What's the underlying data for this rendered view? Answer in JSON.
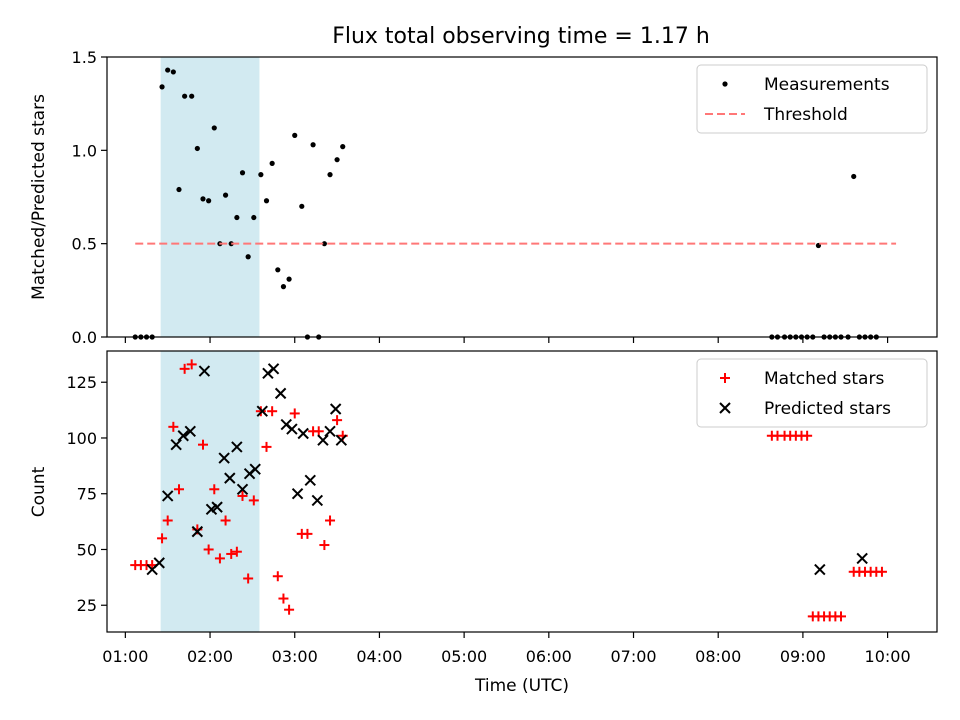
{
  "figure": {
    "title": "Flux total observing time = 1.17 h"
  },
  "chart_data": [
    {
      "type": "scatter",
      "ylabel": "Matched/Predicted stars",
      "ylim": [
        0,
        1.5
      ],
      "yticks": [
        "0.0",
        "0.5",
        "1.0",
        "1.5"
      ],
      "xlim": [
        "00:47",
        "10:35"
      ],
      "shaded_interval": [
        "01:25",
        "02:35"
      ],
      "shade_color": "#add8e6",
      "legend": {
        "position": "top-right"
      },
      "series": [
        {
          "name": "Measurements",
          "kind": "points",
          "color": "#000000",
          "points": [
            [
              "01:07",
              0
            ],
            [
              "01:11",
              0
            ],
            [
              "01:15",
              0
            ],
            [
              "01:19",
              0
            ],
            [
              "01:26",
              1.34
            ],
            [
              "01:30",
              1.43
            ],
            [
              "01:34",
              1.42
            ],
            [
              "01:38",
              0.79
            ],
            [
              "01:42",
              1.29
            ],
            [
              "01:47",
              1.29
            ],
            [
              "01:51",
              1.01
            ],
            [
              "01:55",
              0.74
            ],
            [
              "01:59",
              0.73
            ],
            [
              "02:03",
              1.12
            ],
            [
              "02:07",
              0.5
            ],
            [
              "02:11",
              0.76
            ],
            [
              "02:15",
              0.5
            ],
            [
              "02:19",
              0.64
            ],
            [
              "02:23",
              0.88
            ],
            [
              "02:27",
              0.43
            ],
            [
              "02:31",
              0.64
            ],
            [
              "02:36",
              0.87
            ],
            [
              "02:40",
              0.73
            ],
            [
              "02:44",
              0.93
            ],
            [
              "02:48",
              0.36
            ],
            [
              "02:52",
              0.27
            ],
            [
              "02:56",
              0.31
            ],
            [
              "03:00",
              1.08
            ],
            [
              "03:05",
              0.7
            ],
            [
              "03:09",
              0
            ],
            [
              "03:13",
              1.03
            ],
            [
              "03:17",
              0
            ],
            [
              "03:21",
              0.5
            ],
            [
              "03:25",
              0.87
            ],
            [
              "03:30",
              0.95
            ],
            [
              "03:34",
              1.02
            ],
            [
              "08:38",
              0
            ],
            [
              "08:42",
              0
            ],
            [
              "08:47",
              0
            ],
            [
              "08:51",
              0
            ],
            [
              "08:55",
              0
            ],
            [
              "08:59",
              0
            ],
            [
              "09:03",
              0
            ],
            [
              "09:07",
              0
            ],
            [
              "09:11",
              0.49
            ],
            [
              "09:15",
              0
            ],
            [
              "09:19",
              0
            ],
            [
              "09:23",
              0
            ],
            [
              "09:27",
              0
            ],
            [
              "09:32",
              0
            ],
            [
              "09:36",
              0.86
            ],
            [
              "09:40",
              0
            ],
            [
              "09:44",
              0
            ],
            [
              "09:48",
              0
            ],
            [
              "09:52",
              0
            ]
          ]
        },
        {
          "name": "Threshold",
          "kind": "dashed-line",
          "color": "#ff7777",
          "points": [
            [
              "01:07",
              0.5
            ],
            [
              "10:06",
              0.5
            ]
          ]
        }
      ]
    },
    {
      "type": "scatter",
      "xlabel": "Time (UTC)",
      "ylabel": "Count",
      "ylim": [
        13,
        139
      ],
      "yticks": [
        "25",
        "50",
        "75",
        "100",
        "125"
      ],
      "xlim": [
        "00:47",
        "10:35"
      ],
      "xticks": [
        "01:00",
        "02:00",
        "03:00",
        "04:00",
        "05:00",
        "06:00",
        "07:00",
        "08:00",
        "09:00",
        "10:00"
      ],
      "shaded_interval": [
        "01:25",
        "02:35"
      ],
      "shade_color": "#add8e6",
      "legend": {
        "position": "top-right"
      },
      "series": [
        {
          "name": "Matched stars",
          "marker": "plus",
          "color": "#ff0000",
          "points": [
            [
              "01:07",
              43
            ],
            [
              "01:11",
              43
            ],
            [
              "01:15",
              43
            ],
            [
              "01:19",
              43
            ],
            [
              "01:26",
              55
            ],
            [
              "01:30",
              63
            ],
            [
              "01:34",
              105
            ],
            [
              "01:38",
              77
            ],
            [
              "01:42",
              131
            ],
            [
              "01:47",
              133
            ],
            [
              "01:51",
              59
            ],
            [
              "01:55",
              97
            ],
            [
              "01:59",
              50
            ],
            [
              "02:03",
              77
            ],
            [
              "02:07",
              46
            ],
            [
              "02:11",
              63
            ],
            [
              "02:15",
              48
            ],
            [
              "02:19",
              49
            ],
            [
              "02:23",
              74
            ],
            [
              "02:27",
              37
            ],
            [
              "02:31",
              72
            ],
            [
              "02:36",
              112
            ],
            [
              "02:40",
              96
            ],
            [
              "02:44",
              112
            ],
            [
              "02:48",
              38
            ],
            [
              "02:52",
              28
            ],
            [
              "02:56",
              23
            ],
            [
              "03:00",
              111
            ],
            [
              "03:05",
              57
            ],
            [
              "03:09",
              57
            ],
            [
              "03:13",
              103
            ],
            [
              "03:17",
              103
            ],
            [
              "03:21",
              52
            ],
            [
              "03:25",
              63
            ],
            [
              "03:30",
              108
            ],
            [
              "03:34",
              101
            ],
            [
              "08:38",
              101
            ],
            [
              "08:42",
              101
            ],
            [
              "08:47",
              101
            ],
            [
              "08:51",
              101
            ],
            [
              "08:55",
              101
            ],
            [
              "08:59",
              101
            ],
            [
              "09:03",
              101
            ],
            [
              "09:07",
              20
            ],
            [
              "09:11",
              20
            ],
            [
              "09:15",
              20
            ],
            [
              "09:19",
              20
            ],
            [
              "09:23",
              20
            ],
            [
              "09:27",
              20
            ],
            [
              "09:36",
              40
            ],
            [
              "09:40",
              40
            ],
            [
              "09:44",
              40
            ],
            [
              "09:48",
              40
            ],
            [
              "09:52",
              40
            ],
            [
              "09:56",
              40
            ]
          ]
        },
        {
          "name": "Predicted stars",
          "marker": "x",
          "color": "#000000",
          "points": [
            [
              "01:19",
              41
            ],
            [
              "01:24",
              44
            ],
            [
              "01:30",
              74
            ],
            [
              "01:36",
              97
            ],
            [
              "01:41",
              101
            ],
            [
              "01:46",
              103
            ],
            [
              "01:51",
              58
            ],
            [
              "01:56",
              130
            ],
            [
              "02:01",
              68
            ],
            [
              "02:05",
              69
            ],
            [
              "02:10",
              91
            ],
            [
              "02:14",
              82
            ],
            [
              "02:19",
              96
            ],
            [
              "02:23",
              77
            ],
            [
              "02:28",
              84
            ],
            [
              "02:32",
              86
            ],
            [
              "02:37",
              112
            ],
            [
              "02:41",
              129
            ],
            [
              "02:45",
              131
            ],
            [
              "02:50",
              120
            ],
            [
              "02:54",
              106
            ],
            [
              "02:58",
              104
            ],
            [
              "03:02",
              75
            ],
            [
              "03:06",
              102
            ],
            [
              "03:11",
              81
            ],
            [
              "03:16",
              72
            ],
            [
              "03:20",
              99
            ],
            [
              "03:25",
              103
            ],
            [
              "03:29",
              113
            ],
            [
              "03:33",
              99
            ],
            [
              "09:12",
              41
            ],
            [
              "09:42",
              46
            ]
          ]
        }
      ]
    }
  ]
}
